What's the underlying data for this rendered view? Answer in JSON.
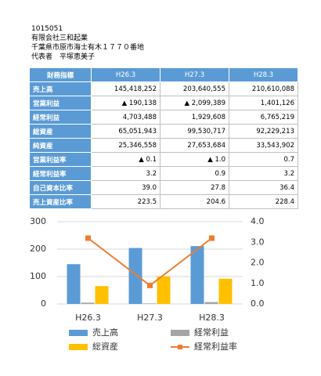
{
  "header": {
    "code": "1015051",
    "company": "有限会社三和起業",
    "address": "千葉県市原市海士有木１７７０番地",
    "representative": "代表者　平塚恵美子"
  },
  "table": {
    "columns": [
      "財務指標",
      "H26.3",
      "H27.3",
      "H28.3"
    ],
    "rows": [
      [
        "売上高",
        "145,418,252",
        "203,640,555",
        "210,610,088"
      ],
      [
        "営業利益",
        "▲ 190,138",
        "▲ 2,099,389",
        "1,401,126"
      ],
      [
        "経常利益",
        "4,703,488",
        "1,929,608",
        "6,765,219"
      ],
      [
        "総資産",
        "65,051,943",
        "99,530,717",
        "92,229,213"
      ],
      [
        "純資産",
        "25,346,558",
        "27,653,684",
        "33,543,902"
      ],
      [
        "営業利益率",
        "▲ 0.1",
        "▲ 1.0",
        "0.7"
      ],
      [
        "経常利益率",
        "3.2",
        "0.9",
        "3.2"
      ],
      [
        "自己資本比率",
        "39.0",
        "27.8",
        "36.4"
      ],
      [
        "売上資産比率",
        "223.5",
        "204.6",
        "228.4"
      ]
    ]
  },
  "chart_data": {
    "type": "bar-line",
    "categories": [
      "H26.3",
      "H27.3",
      "H28.3"
    ],
    "series": [
      {
        "name": "売上高",
        "color": "#5b9bd5",
        "values": [
          145,
          204,
          211
        ]
      },
      {
        "name": "経常利益",
        "color": "#a5a5a5",
        "values": [
          4.7,
          1.9,
          6.8
        ]
      },
      {
        "name": "総資産",
        "color": "#ffc000",
        "values": [
          65,
          100,
          92
        ]
      },
      {
        "name": "経常利益率",
        "color": "#ed7d31",
        "values": [
          3.2,
          0.9,
          3.2
        ],
        "axis": "y2"
      }
    ],
    "ylim": [
      0,
      300
    ],
    "yticks": [
      0,
      100,
      200,
      300
    ],
    "y2lim": [
      0,
      4
    ],
    "y2ticks": [
      {
        "value": 0,
        "label": "0.0"
      },
      {
        "value": 1,
        "label": "1.0"
      },
      {
        "value": 2,
        "label": "2.0"
      },
      {
        "value": 3,
        "label": "3.0"
      },
      {
        "value": 4,
        "label": "4.0"
      }
    ],
    "grid": true
  }
}
